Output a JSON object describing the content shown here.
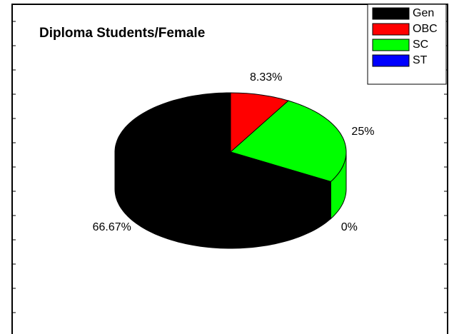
{
  "chart_data": {
    "type": "pie3d",
    "title": "Diploma Students/Female",
    "categories": [
      "Gen",
      "OBC",
      "SC",
      "ST"
    ],
    "values": [
      66.67,
      8.33,
      25,
      0
    ],
    "value_labels": [
      "66.67%",
      "8.33%",
      "25%",
      "0%"
    ],
    "colors": [
      "#000000",
      "#ff0000",
      "#00ff00",
      "#0000ff"
    ],
    "legend": "top-right"
  }
}
